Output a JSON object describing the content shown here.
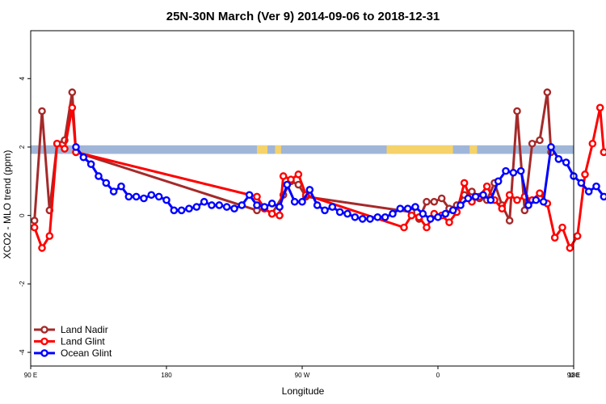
{
  "chart_data": {
    "type": "line",
    "title": "25N-30N March (Ver 9)   2014-09-06 to 2018-12-31",
    "xlabel": "Longitude",
    "ylabel": "XCO2 - MLO trend (ppm)",
    "x_unit": "longitude (degrees east, 90E through 180 to 90E, then on to 180)",
    "xlim": [
      90,
      450
    ],
    "ylim": [
      -4.4,
      5.4
    ],
    "grid": false,
    "legend_position": "bottom-left",
    "x_ticks": [
      {
        "value": 90,
        "label": "90 E"
      },
      {
        "value": 180,
        "label": "180"
      },
      {
        "value": 270,
        "label": "90 W"
      },
      {
        "value": 360,
        "label": "0"
      },
      {
        "value": 450,
        "label": "90 E"
      },
      {
        "value": 540,
        "label": "180"
      }
    ],
    "y_ticks": [
      {
        "value": -4,
        "label": "-4"
      },
      {
        "value": -2,
        "label": "-2"
      },
      {
        "value": 0,
        "label": "0"
      },
      {
        "value": 2,
        "label": "2"
      },
      {
        "value": 4,
        "label": "4"
      }
    ],
    "land_ocean_band": {
      "y_range": [
        1.8,
        2.05
      ],
      "ocean_color": "#9fb6d8",
      "land_color": "#f5d26a",
      "land_spans": [
        [
          240,
          247
        ],
        [
          252,
          256
        ],
        [
          326,
          370
        ],
        [
          381,
          386
        ]
      ]
    },
    "series": [
      {
        "name": "Land Nadir",
        "color": "#a52a2a",
        "points": [
          [
            92.5,
            -0.15
          ],
          [
            97.5,
            3.05
          ],
          [
            102.5,
            0.15
          ],
          [
            107.5,
            2.1
          ],
          [
            112.5,
            2.2
          ],
          [
            117.5,
            3.6
          ],
          [
            120,
            1.85
          ],
          [
            240,
            0.15
          ],
          [
            245,
            0.2
          ],
          [
            250,
            0.05
          ],
          [
            257.5,
            0.6
          ],
          [
            262.5,
            1.0
          ],
          [
            267.5,
            0.9
          ],
          [
            272.5,
            0.55
          ],
          [
            342.5,
            0.1
          ],
          [
            347.5,
            -0.1
          ],
          [
            352.5,
            0.4
          ],
          [
            357.5,
            0.4
          ],
          [
            362.5,
            0.5
          ],
          [
            367.5,
            0.2
          ],
          [
            372.5,
            0.3
          ],
          [
            377.5,
            0.6
          ],
          [
            382.5,
            0.7
          ],
          [
            387.5,
            0.5
          ],
          [
            392.5,
            0.45
          ],
          [
            397.5,
            0.95
          ],
          [
            402.5,
            0.3
          ],
          [
            407.5,
            -0.15
          ],
          [
            412.5,
            3.05
          ],
          [
            417.5,
            0.15
          ],
          [
            422.5,
            2.1
          ],
          [
            427.5,
            2.2
          ],
          [
            432.5,
            3.6
          ],
          [
            435,
            1.85
          ]
        ]
      },
      {
        "name": "Land Glint",
        "color": "#ff0000",
        "points": [
          [
            92.5,
            -0.35
          ],
          [
            97.5,
            -0.95
          ],
          [
            102.5,
            -0.6
          ],
          [
            107.5,
            2.1
          ],
          [
            112.5,
            1.95
          ],
          [
            117.5,
            3.15
          ],
          [
            120,
            1.85
          ],
          [
            240,
            0.55
          ],
          [
            245,
            0.2
          ],
          [
            250,
            0.05
          ],
          [
            255,
            0.0
          ],
          [
            257.5,
            1.15
          ],
          [
            262.5,
            1.05
          ],
          [
            267.5,
            1.2
          ],
          [
            272.5,
            0.6
          ],
          [
            337.5,
            -0.35
          ],
          [
            342.5,
            0.0
          ],
          [
            347.5,
            -0.05
          ],
          [
            352.5,
            -0.35
          ],
          [
            357.5,
            0.05
          ],
          [
            362.5,
            0.0
          ],
          [
            367.5,
            -0.2
          ],
          [
            372.5,
            0.1
          ],
          [
            377.5,
            0.95
          ],
          [
            382.5,
            0.4
          ],
          [
            387.5,
            0.55
          ],
          [
            392.5,
            0.85
          ],
          [
            397.5,
            0.45
          ],
          [
            402.5,
            0.2
          ],
          [
            407.5,
            0.6
          ],
          [
            412.5,
            0.45
          ],
          [
            417.5,
            0.55
          ],
          [
            422.5,
            0.45
          ],
          [
            427.5,
            0.65
          ],
          [
            432.5,
            0.35
          ],
          [
            437.5,
            -0.65
          ],
          [
            442.5,
            -0.35
          ],
          [
            447.5,
            -0.95
          ],
          [
            452.5,
            -0.6
          ],
          [
            457.5,
            1.2
          ],
          [
            462.5,
            2.1
          ],
          [
            467.5,
            3.15
          ],
          [
            470,
            1.85
          ]
        ]
      },
      {
        "name": "Ocean Glint",
        "color": "#0000ff",
        "points": [
          [
            120,
            2.0
          ],
          [
            125,
            1.7
          ],
          [
            130,
            1.5
          ],
          [
            135,
            1.15
          ],
          [
            140,
            0.95
          ],
          [
            145,
            0.7
          ],
          [
            150,
            0.85
          ],
          [
            155,
            0.55
          ],
          [
            160,
            0.55
          ],
          [
            165,
            0.5
          ],
          [
            170,
            0.6
          ],
          [
            175,
            0.55
          ],
          [
            180,
            0.45
          ],
          [
            185,
            0.15
          ],
          [
            190,
            0.15
          ],
          [
            195,
            0.2
          ],
          [
            200,
            0.25
          ],
          [
            205,
            0.4
          ],
          [
            210,
            0.3
          ],
          [
            215,
            0.3
          ],
          [
            220,
            0.25
          ],
          [
            225,
            0.2
          ],
          [
            230,
            0.3
          ],
          [
            235,
            0.6
          ],
          [
            240,
            0.3
          ],
          [
            245,
            0.25
          ],
          [
            250,
            0.35
          ],
          [
            255,
            0.25
          ],
          [
            260,
            0.9
          ],
          [
            265,
            0.4
          ],
          [
            270,
            0.4
          ],
          [
            275,
            0.75
          ],
          [
            280,
            0.3
          ],
          [
            285,
            0.15
          ],
          [
            290,
            0.25
          ],
          [
            295,
            0.1
          ],
          [
            300,
            0.05
          ],
          [
            305,
            -0.05
          ],
          [
            310,
            -0.1
          ],
          [
            315,
            -0.1
          ],
          [
            320,
            -0.05
          ],
          [
            325,
            -0.05
          ],
          [
            330,
            0.05
          ],
          [
            335,
            0.2
          ],
          [
            340,
            0.2
          ],
          [
            345,
            0.25
          ],
          [
            350,
            0.05
          ],
          [
            355,
            -0.1
          ],
          [
            360,
            -0.05
          ],
          [
            365,
            0.05
          ],
          [
            370,
            0.15
          ],
          [
            375,
            0.3
          ],
          [
            380,
            0.5
          ],
          [
            385,
            0.55
          ],
          [
            390,
            0.6
          ],
          [
            395,
            0.45
          ],
          [
            400,
            1.0
          ],
          [
            405,
            1.3
          ],
          [
            410,
            1.25
          ],
          [
            415,
            1.3
          ],
          [
            420,
            0.3
          ],
          [
            425,
            0.45
          ],
          [
            430,
            0.4
          ],
          [
            435,
            2.0
          ],
          [
            440,
            1.65
          ],
          [
            445,
            1.55
          ],
          [
            450,
            1.15
          ],
          [
            455,
            0.95
          ],
          [
            460,
            0.7
          ],
          [
            465,
            0.85
          ],
          [
            470,
            0.55
          ],
          [
            475,
            0.55
          ],
          [
            480,
            0.5
          ],
          [
            485,
            0.6
          ],
          [
            490,
            0.55
          ]
        ]
      }
    ]
  }
}
